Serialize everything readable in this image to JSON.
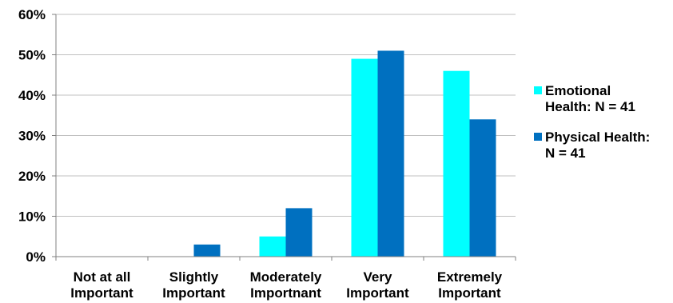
{
  "chart_data": {
    "type": "bar",
    "categories": [
      [
        "Not at all",
        "Important"
      ],
      [
        "Slightly",
        "Important"
      ],
      [
        "Moderately",
        "Importnant"
      ],
      [
        "Very",
        "Important"
      ],
      [
        "Extremely",
        "Important"
      ]
    ],
    "series": [
      {
        "name_lines": [
          "Emotional",
          "Health: N = 41"
        ],
        "color": "#00ffff",
        "values": [
          0,
          0,
          5,
          49,
          46
        ]
      },
      {
        "name_lines": [
          "Physical Health:",
          "N = 41"
        ],
        "color": "#0070c0",
        "values": [
          0,
          3,
          12,
          51,
          34
        ]
      }
    ],
    "ylim": [
      0,
      60
    ],
    "yticks": [
      0,
      10,
      20,
      30,
      40,
      50,
      60
    ],
    "ytick_suffix": "%",
    "gridlines": true,
    "gridline_color": "#c0c0c0",
    "legend_position": "right",
    "title": "",
    "xlabel": "",
    "ylabel": ""
  }
}
